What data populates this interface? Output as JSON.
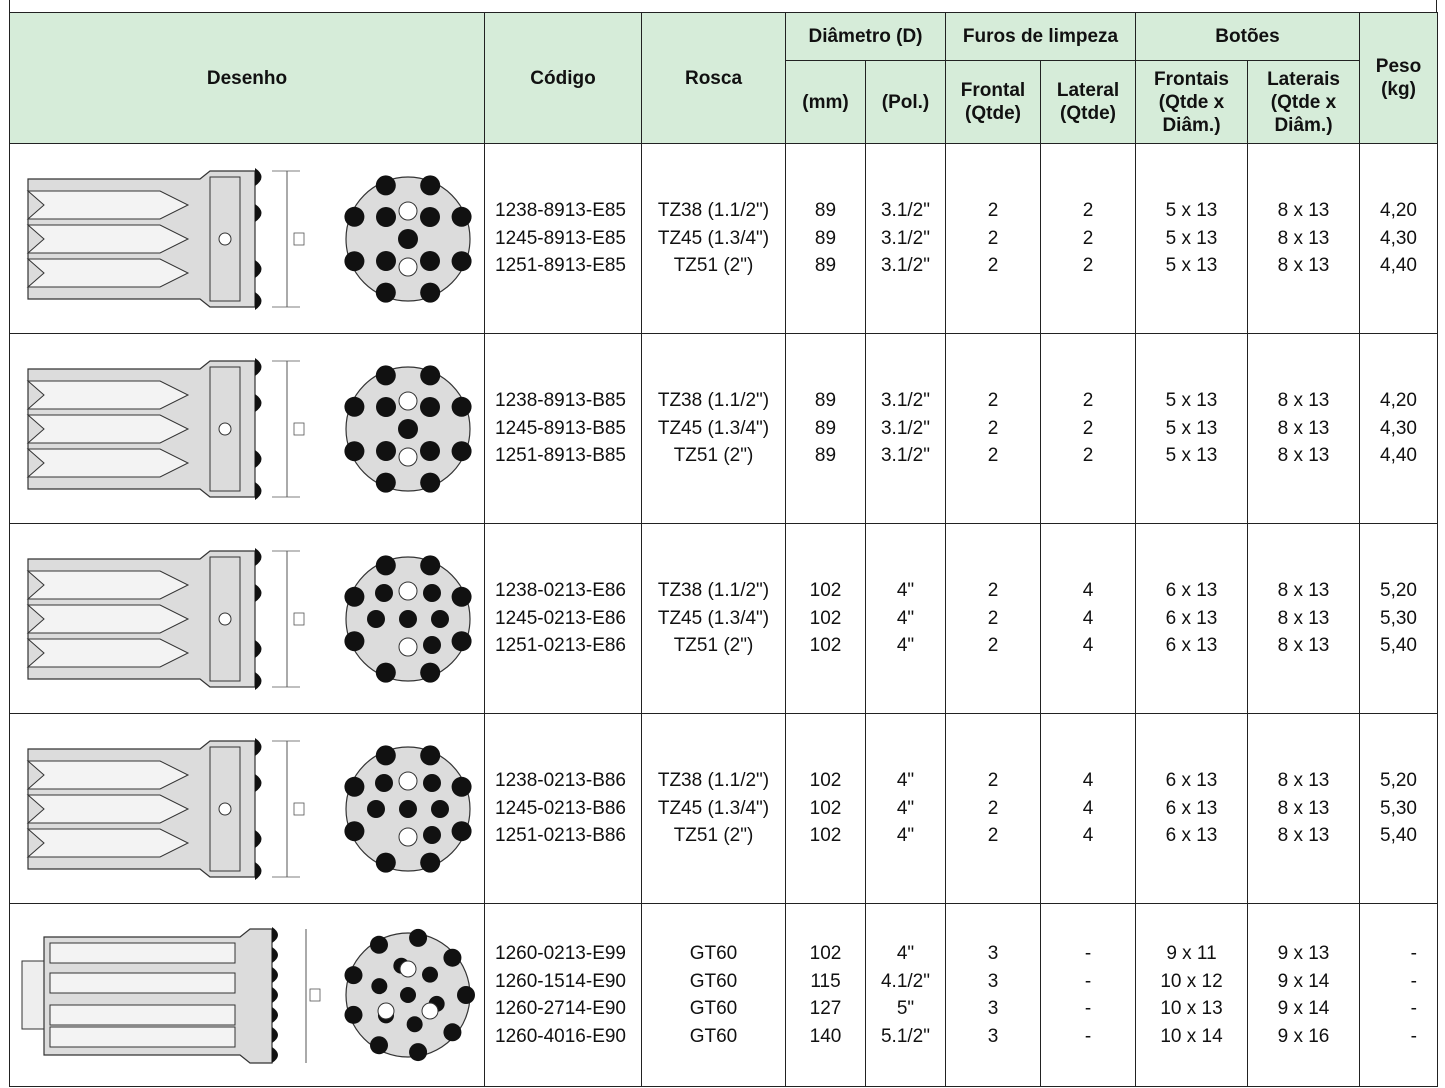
{
  "headers": {
    "desenho": "Desenho",
    "codigo": "Código",
    "rosca": "Rosca",
    "diametro": "Diâmetro (D)",
    "mm": "(mm)",
    "pol": "(Pol.)",
    "furos": "Furos de limpeza",
    "frontal": [
      "Frontal",
      "(Qtde)"
    ],
    "lateral": [
      "Lateral",
      "(Qtde)"
    ],
    "botoes": "Botões",
    "frontais": [
      "Frontais",
      "(Qtde x",
      "Diâm.)"
    ],
    "laterais": [
      "Laterais",
      "(Qtde x",
      "Diâm.)"
    ],
    "peso": [
      "Peso",
      "(kg)"
    ]
  },
  "rows": [
    {
      "drawing": "bit-e85-drawing",
      "codigo": [
        "1238-8913-E85",
        "1245-8913-E85",
        "1251-8913-E85"
      ],
      "rosca": [
        "TZ38 (1.1/2\")",
        "TZ45 (1.3/4\")",
        "TZ51 (2\")"
      ],
      "mm": [
        "89",
        "89",
        "89"
      ],
      "pol": [
        "3.1/2\"",
        "3.1/2\"",
        "3.1/2\""
      ],
      "frontal": [
        "2",
        "2",
        "2"
      ],
      "lateral": [
        "2",
        "2",
        "2"
      ],
      "frontais": [
        "5 x 13",
        "5 x 13",
        "5 x 13"
      ],
      "laterais": [
        "8 x 13",
        "8 x 13",
        "8 x 13"
      ],
      "peso": [
        "4,20",
        "4,30",
        "4,40"
      ]
    },
    {
      "drawing": "bit-b85-drawing",
      "codigo": [
        "1238-8913-B85",
        "1245-8913-B85",
        "1251-8913-B85"
      ],
      "rosca": [
        "TZ38 (1.1/2\")",
        "TZ45 (1.3/4\")",
        "TZ51 (2\")"
      ],
      "mm": [
        "89",
        "89",
        "89"
      ],
      "pol": [
        "3.1/2\"",
        "3.1/2\"",
        "3.1/2\""
      ],
      "frontal": [
        "2",
        "2",
        "2"
      ],
      "lateral": [
        "2",
        "2",
        "2"
      ],
      "frontais": [
        "5 x 13",
        "5 x 13",
        "5 x 13"
      ],
      "laterais": [
        "8 x 13",
        "8 x 13",
        "8 x 13"
      ],
      "peso": [
        "4,20",
        "4,30",
        "4,40"
      ]
    },
    {
      "drawing": "bit-e86-drawing",
      "codigo": [
        "1238-0213-E86",
        "1245-0213-E86",
        "1251-0213-E86"
      ],
      "rosca": [
        "TZ38 (1.1/2\")",
        "TZ45 (1.3/4\")",
        "TZ51 (2\")"
      ],
      "mm": [
        "102",
        "102",
        "102"
      ],
      "pol": [
        "4\"",
        "4\"",
        "4\""
      ],
      "frontal": [
        "2",
        "2",
        "2"
      ],
      "lateral": [
        "4",
        "4",
        "4"
      ],
      "frontais": [
        "6 x 13",
        "6 x 13",
        "6 x 13"
      ],
      "laterais": [
        "8 x 13",
        "8 x 13",
        "8 x 13"
      ],
      "peso": [
        "5,20",
        "5,30",
        "5,40"
      ]
    },
    {
      "drawing": "bit-b86-drawing",
      "codigo": [
        "1238-0213-B86",
        "1245-0213-B86",
        "1251-0213-B86"
      ],
      "rosca": [
        "TZ38 (1.1/2\")",
        "TZ45 (1.3/4\")",
        "TZ51 (2\")"
      ],
      "mm": [
        "102",
        "102",
        "102"
      ],
      "pol": [
        "4\"",
        "4\"",
        "4\""
      ],
      "frontal": [
        "2",
        "2",
        "2"
      ],
      "lateral": [
        "4",
        "4",
        "4"
      ],
      "frontais": [
        "6 x 13",
        "6 x 13",
        "6 x 13"
      ],
      "laterais": [
        "8 x 13",
        "8 x 13",
        "8 x 13"
      ],
      "peso": [
        "5,20",
        "5,30",
        "5,40"
      ]
    },
    {
      "drawing": "bit-gt60-drawing",
      "codigo": [
        "1260-0213-E99",
        "1260-1514-E90",
        "1260-2714-E90",
        "1260-4016-E90"
      ],
      "rosca": [
        "GT60",
        "GT60",
        "GT60",
        "GT60"
      ],
      "mm": [
        "102",
        "115",
        "127",
        "140"
      ],
      "pol": [
        "4\"",
        "4.1/2\"",
        "5\"",
        "5.1/2\""
      ],
      "frontal": [
        "3",
        "3",
        "3",
        "3"
      ],
      "lateral": [
        "-",
        "-",
        "-",
        "-"
      ],
      "frontais": [
        "9 x 11",
        "10 x 12",
        "10 x 13",
        "10 x 14"
      ],
      "laterais": [
        "9 x 13",
        "9 x 14",
        "9 x 14",
        "9 x 16"
      ],
      "peso": [
        "-",
        "-",
        "-",
        "-"
      ]
    }
  ],
  "dimension_label": "D",
  "colors": {
    "header_bg": "#d6ecd9",
    "border": "#222222",
    "button": "#111111",
    "body_gray": "#d9d9d9"
  }
}
